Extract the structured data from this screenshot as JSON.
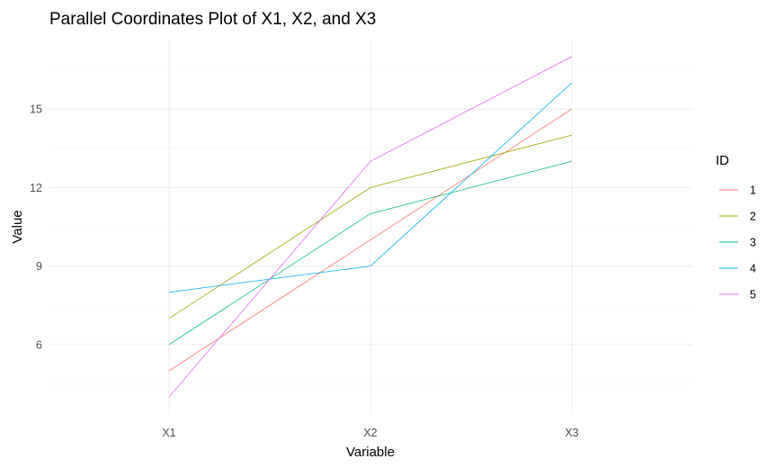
{
  "chart_data": {
    "type": "line",
    "title": "Parallel Coordinates Plot of X1, X2, and X3",
    "xlabel": "Variable",
    "ylabel": "Value",
    "categories": [
      "X1",
      "X2",
      "X3"
    ],
    "yticks": [
      6,
      9,
      12,
      15
    ],
    "ylim": [
      3.35,
      17.65
    ],
    "grid": true,
    "legend": {
      "title": "ID",
      "placement": "right"
    },
    "series": [
      {
        "name": "1",
        "color": "#F8766D",
        "values": [
          5,
          10,
          15
        ]
      },
      {
        "name": "2",
        "color": "#A3A500",
        "values": [
          7,
          12,
          14
        ]
      },
      {
        "name": "3",
        "color": "#00BF7D",
        "values": [
          6,
          11,
          13
        ]
      },
      {
        "name": "4",
        "color": "#00B0F6",
        "values": [
          8,
          9,
          16
        ]
      },
      {
        "name": "5",
        "color": "#E76BF3",
        "values": [
          4,
          13,
          17
        ]
      }
    ]
  }
}
